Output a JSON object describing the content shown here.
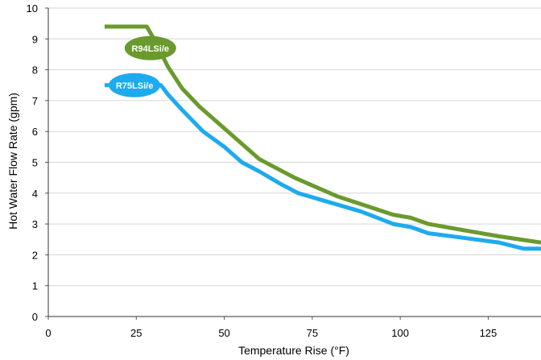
{
  "chart_data": {
    "type": "line",
    "title": "",
    "xlabel": "Temperature Rise (°F)",
    "ylabel": "Hot Water Flow Rate (gpm)",
    "xlim": [
      0,
      140
    ],
    "ylim": [
      0,
      10
    ],
    "xticks": [
      0,
      25,
      50,
      75,
      100,
      125
    ],
    "yticks": [
      0,
      1,
      2,
      3,
      4,
      5,
      6,
      7,
      8,
      9,
      10
    ],
    "grid": {
      "horizontal": true,
      "vertical": false
    },
    "legend": "labels placed on the lines",
    "series": [
      {
        "name": "R94LSi/e",
        "color": "#6a9a2e",
        "x": [
          16,
          28,
          30,
          34,
          38,
          43,
          50,
          60,
          70,
          82,
          90,
          98,
          103,
          108,
          118,
          128,
          140
        ],
        "y": [
          9.4,
          9.4,
          9.0,
          8.1,
          7.4,
          6.8,
          6.1,
          5.1,
          4.5,
          3.9,
          3.6,
          3.3,
          3.2,
          3.0,
          2.8,
          2.6,
          2.4
        ]
      },
      {
        "name": "R75LSi/e",
        "color": "#1eaaee",
        "x": [
          16,
          32,
          34,
          38,
          44,
          50,
          55,
          60,
          66,
          71,
          80,
          89,
          98,
          103,
          108,
          118,
          128,
          135,
          140
        ],
        "y": [
          7.5,
          7.5,
          7.2,
          6.7,
          6.0,
          5.5,
          5.0,
          4.7,
          4.3,
          4.0,
          3.7,
          3.4,
          3.0,
          2.9,
          2.7,
          2.55,
          2.4,
          2.2,
          2.2
        ]
      }
    ],
    "series_labels": [
      {
        "series": 0,
        "x": 29,
        "y": 8.7,
        "text": "R94LSi/e"
      },
      {
        "series": 1,
        "x": 24.5,
        "y": 7.5,
        "text": "R75LSi/e"
      }
    ]
  }
}
